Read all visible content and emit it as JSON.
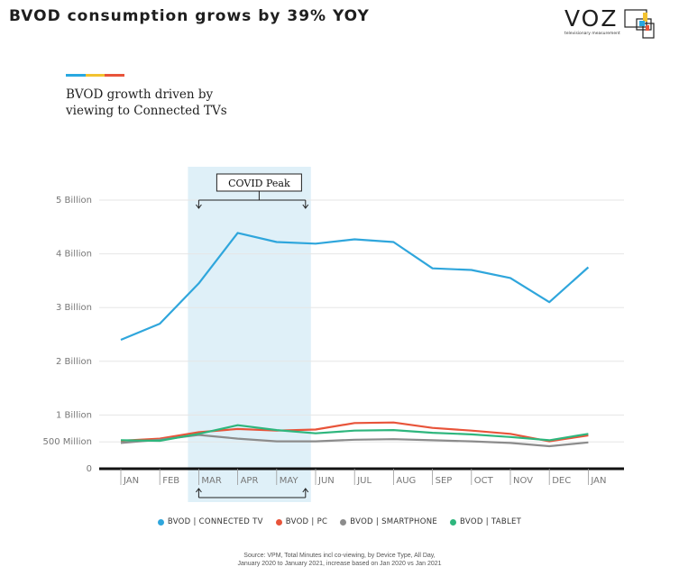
{
  "header": {
    "title": "BVOD consumption grows by 39% YOY",
    "logo_text": "VOZ",
    "logo_subtext": "televisionary measurement",
    "subtitle_line1": "BVOD growth driven by",
    "subtitle_line2": "viewing to Connected TVs",
    "accent_colors": [
      "#29a8e0",
      "#f2c230",
      "#e8543a"
    ]
  },
  "chart_data": {
    "type": "line",
    "categories": [
      "JAN",
      "FEB",
      "MAR",
      "APR",
      "MAY",
      "JUN",
      "JUL",
      "AUG",
      "SEP",
      "OCT",
      "NOV",
      "DEC",
      "JAN"
    ],
    "y_ticks": [
      {
        "value": 0,
        "label": "0"
      },
      {
        "value": 500000000,
        "label": "500 Million"
      },
      {
        "value": 1000000000,
        "label": "1 Billion"
      },
      {
        "value": 2000000000,
        "label": "2 Billion"
      },
      {
        "value": 3000000000,
        "label": "3 Billion"
      },
      {
        "value": 4000000000,
        "label": "4 Billion"
      },
      {
        "value": 5000000000,
        "label": "5 Billion"
      }
    ],
    "ylim": [
      0,
      5000000000
    ],
    "series": [
      {
        "name": "BVOD | CONNECTED TV",
        "color": "#2fa6dc",
        "values": [
          2400000000,
          2700000000,
          3450000000,
          4390000000,
          4220000000,
          4190000000,
          4270000000,
          4220000000,
          3730000000,
          3700000000,
          3550000000,
          3100000000,
          3750000000
        ]
      },
      {
        "name": "BVOD | PC",
        "color": "#e8543a",
        "values": [
          520000000,
          560000000,
          680000000,
          740000000,
          710000000,
          730000000,
          850000000,
          860000000,
          760000000,
          710000000,
          650000000,
          510000000,
          620000000
        ]
      },
      {
        "name": "BVOD | SMARTPHONE",
        "color": "#8c8c8c",
        "values": [
          480000000,
          540000000,
          630000000,
          560000000,
          510000000,
          510000000,
          540000000,
          550000000,
          530000000,
          510000000,
          480000000,
          420000000,
          490000000
        ]
      },
      {
        "name": "BVOD | TABLET",
        "color": "#2eb67d",
        "values": [
          530000000,
          520000000,
          650000000,
          810000000,
          720000000,
          660000000,
          710000000,
          720000000,
          670000000,
          640000000,
          590000000,
          530000000,
          650000000
        ]
      }
    ],
    "annotation": {
      "label": "COVID Peak",
      "from_category_index": 2,
      "to_category_index": 4,
      "highlight_color": "#dff0f8"
    },
    "legend_position": "bottom-center",
    "grid": true
  },
  "footer": {
    "source_line1": "Source: VPM, Total Minutes incl co-viewing, by Device Type, All Day,",
    "source_line2": "January 2020 to January 2021, increase based on Jan 2020 vs Jan 2021"
  }
}
